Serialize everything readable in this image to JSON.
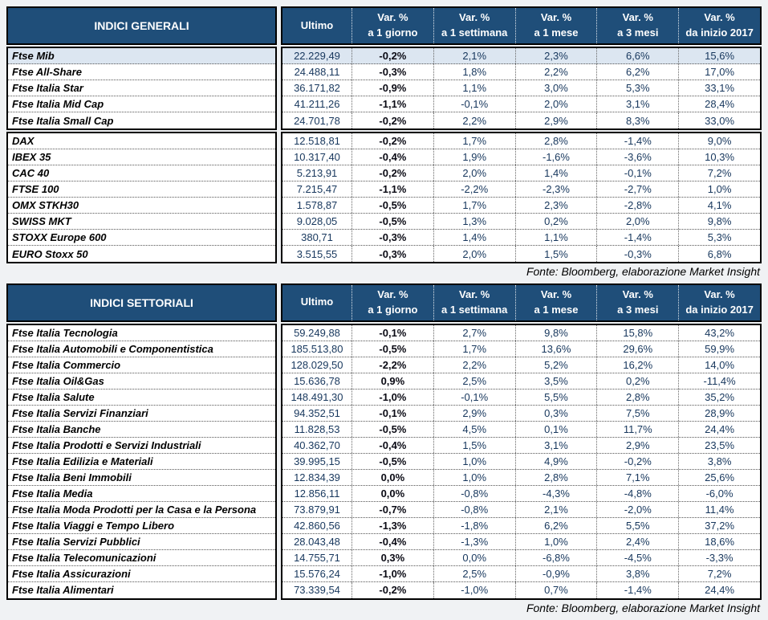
{
  "colors": {
    "header_bg": "#1F4E79",
    "highlight_row_bg": "#DCE6F1",
    "value_text": "#17375D"
  },
  "columns": [
    {
      "top": "Ultimo",
      "bottom": ""
    },
    {
      "top": "Var. %",
      "bottom": "a 1 giorno"
    },
    {
      "top": "Var. %",
      "bottom": "a 1 settimana"
    },
    {
      "top": "Var. %",
      "bottom": "a 1 mese"
    },
    {
      "top": "Var. %",
      "bottom": "a 3 mesi"
    },
    {
      "top": "Var. %",
      "bottom": "da inizio 2017"
    }
  ],
  "tables": [
    {
      "title": "INDICI GENERALI",
      "source_note": "Fonte: Bloomberg, elaborazione Market Insight",
      "groups": [
        {
          "rows": [
            {
              "name": "Ftse Mib",
              "highlight": true,
              "values": [
                "22.229,49",
                "-0,2%",
                "2,1%",
                "2,3%",
                "6,6%",
                "15,6%"
              ]
            },
            {
              "name": "Ftse All-Share",
              "highlight": false,
              "values": [
                "24.488,11",
                "-0,3%",
                "1,8%",
                "2,2%",
                "6,2%",
                "17,0%"
              ]
            },
            {
              "name": "Ftse Italia Star",
              "highlight": false,
              "values": [
                "36.171,82",
                "-0,9%",
                "1,1%",
                "3,0%",
                "5,3%",
                "33,1%"
              ]
            },
            {
              "name": "Ftse Italia Mid Cap",
              "highlight": false,
              "values": [
                "41.211,26",
                "-1,1%",
                "-0,1%",
                "2,0%",
                "3,1%",
                "28,4%"
              ]
            },
            {
              "name": "Ftse Italia Small Cap",
              "highlight": false,
              "values": [
                "24.701,78",
                "-0,2%",
                "2,2%",
                "2,9%",
                "8,3%",
                "33,0%"
              ]
            }
          ]
        },
        {
          "rows": [
            {
              "name": "DAX",
              "highlight": false,
              "values": [
                "12.518,81",
                "-0,2%",
                "1,7%",
                "2,8%",
                "-1,4%",
                "9,0%"
              ]
            },
            {
              "name": "IBEX 35",
              "highlight": false,
              "values": [
                "10.317,40",
                "-0,4%",
                "1,9%",
                "-1,6%",
                "-3,6%",
                "10,3%"
              ]
            },
            {
              "name": "CAC 40",
              "highlight": false,
              "values": [
                "5.213,91",
                "-0,2%",
                "2,0%",
                "1,4%",
                "-0,1%",
                "7,2%"
              ]
            },
            {
              "name": "FTSE 100",
              "highlight": false,
              "values": [
                "7.215,47",
                "-1,1%",
                "-2,2%",
                "-2,3%",
                "-2,7%",
                "1,0%"
              ]
            },
            {
              "name": "OMX STKH30",
              "highlight": false,
              "values": [
                "1.578,87",
                "-0,5%",
                "1,7%",
                "2,3%",
                "-2,8%",
                "4,1%"
              ]
            },
            {
              "name": "SWISS MKT",
              "highlight": false,
              "values": [
                "9.028,05",
                "-0,5%",
                "1,3%",
                "0,2%",
                "2,0%",
                "9,8%"
              ]
            },
            {
              "name": "STOXX Europe 600",
              "highlight": false,
              "values": [
                "380,71",
                "-0,3%",
                "1,4%",
                "1,1%",
                "-1,4%",
                "5,3%"
              ]
            },
            {
              "name": "EURO Stoxx 50",
              "highlight": false,
              "values": [
                "3.515,55",
                "-0,3%",
                "2,0%",
                "1,5%",
                "-0,3%",
                "6,8%"
              ]
            }
          ]
        }
      ]
    },
    {
      "title": "INDICI SETTORIALI",
      "source_note": "Fonte: Bloomberg, elaborazione Market Insight",
      "groups": [
        {
          "rows": [
            {
              "name": "Ftse Italia Tecnologia",
              "highlight": false,
              "values": [
                "59.249,88",
                "-0,1%",
                "2,7%",
                "9,8%",
                "15,8%",
                "43,2%"
              ]
            },
            {
              "name": "Ftse Italia Automobili e Componentistica",
              "highlight": false,
              "values": [
                "185.513,80",
                "-0,5%",
                "1,7%",
                "13,6%",
                "29,6%",
                "59,9%"
              ]
            },
            {
              "name": "Ftse Italia Commercio",
              "highlight": false,
              "values": [
                "128.029,50",
                "-2,2%",
                "2,2%",
                "5,2%",
                "16,2%",
                "14,0%"
              ]
            },
            {
              "name": "Ftse Italia Oil&Gas",
              "highlight": false,
              "values": [
                "15.636,78",
                "0,9%",
                "2,5%",
                "3,5%",
                "0,2%",
                "-11,4%"
              ]
            },
            {
              "name": "Ftse Italia Salute",
              "highlight": false,
              "values": [
                "148.491,30",
                "-1,0%",
                "-0,1%",
                "5,5%",
                "2,8%",
                "35,2%"
              ]
            },
            {
              "name": "Ftse Italia Servizi Finanziari",
              "highlight": false,
              "values": [
                "94.352,51",
                "-0,1%",
                "2,9%",
                "0,3%",
                "7,5%",
                "28,9%"
              ]
            },
            {
              "name": "Ftse Italia Banche",
              "highlight": false,
              "values": [
                "11.828,53",
                "-0,5%",
                "4,5%",
                "0,1%",
                "11,7%",
                "24,4%"
              ]
            },
            {
              "name": "Ftse Italia Prodotti e Servizi Industriali",
              "highlight": false,
              "values": [
                "40.362,70",
                "-0,4%",
                "1,5%",
                "3,1%",
                "2,9%",
                "23,5%"
              ]
            },
            {
              "name": "Ftse Italia Edilizia e Materiali",
              "highlight": false,
              "values": [
                "39.995,15",
                "-0,5%",
                "1,0%",
                "4,9%",
                "-0,2%",
                "3,8%"
              ]
            },
            {
              "name": "Ftse Italia Beni Immobili",
              "highlight": false,
              "values": [
                "12.834,39",
                "0,0%",
                "1,0%",
                "2,8%",
                "7,1%",
                "25,6%"
              ]
            },
            {
              "name": "Ftse Italia Media",
              "highlight": false,
              "values": [
                "12.856,11",
                "0,0%",
                "-0,8%",
                "-4,3%",
                "-4,8%",
                "-6,0%"
              ]
            },
            {
              "name": "Ftse Italia Moda Prodotti per la Casa e la Persona",
              "highlight": false,
              "values": [
                "73.879,91",
                "-0,7%",
                "-0,8%",
                "2,1%",
                "-2,0%",
                "11,4%"
              ]
            },
            {
              "name": "Ftse Italia Viaggi e Tempo Libero",
              "highlight": false,
              "values": [
                "42.860,56",
                "-1,3%",
                "-1,8%",
                "6,2%",
                "5,5%",
                "37,2%"
              ]
            },
            {
              "name": "Ftse Italia Servizi Pubblici",
              "highlight": false,
              "values": [
                "28.043,48",
                "-0,4%",
                "-1,3%",
                "1,0%",
                "2,4%",
                "18,6%"
              ]
            },
            {
              "name": "Ftse Italia Telecomunicazioni",
              "highlight": false,
              "values": [
                "14.755,71",
                "0,3%",
                "0,0%",
                "-6,8%",
                "-4,5%",
                "-3,3%"
              ]
            },
            {
              "name": "Ftse Italia Assicurazioni",
              "highlight": false,
              "values": [
                "15.576,24",
                "-1,0%",
                "2,5%",
                "-0,9%",
                "3,8%",
                "7,2%"
              ]
            },
            {
              "name": "Ftse Italia Alimentari",
              "highlight": false,
              "values": [
                "73.339,54",
                "-0,2%",
                "-1,0%",
                "0,7%",
                "-1,4%",
                "24,4%"
              ]
            }
          ]
        }
      ]
    }
  ]
}
